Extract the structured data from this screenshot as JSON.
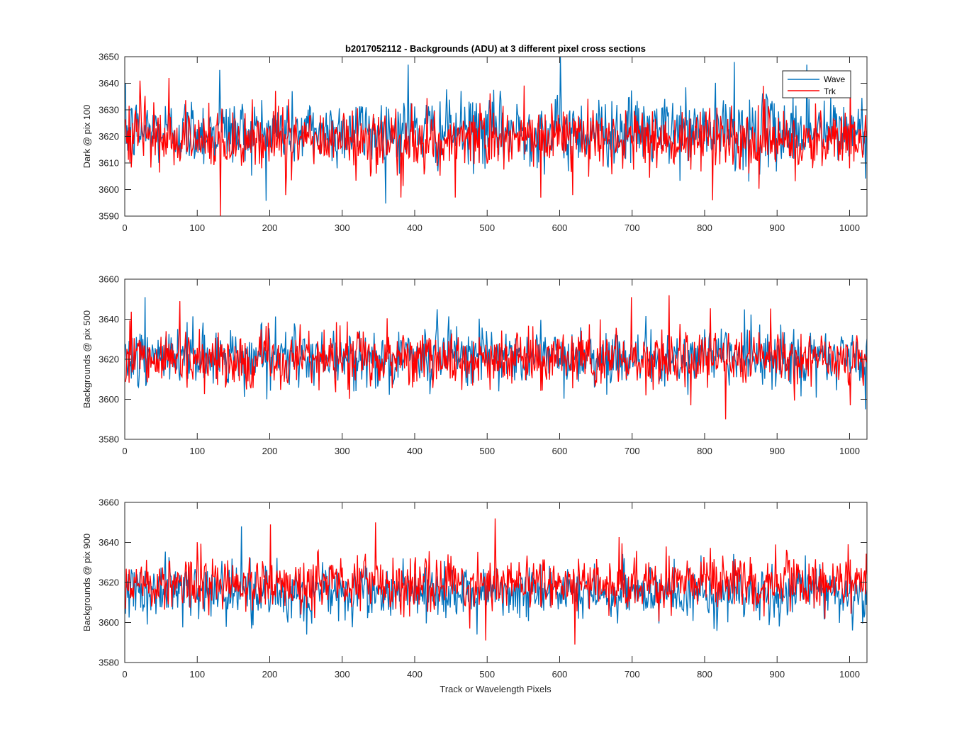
{
  "chart_data": [
    {
      "type": "line",
      "title": "b2017052112 - Backgrounds (ADU) at 3 different pixel cross sections",
      "xlabel": "",
      "ylabel": "Dark @ pix 100",
      "xlim": [
        0,
        1024
      ],
      "ylim": [
        3590,
        3650
      ],
      "xticks": [
        0,
        100,
        200,
        300,
        400,
        500,
        600,
        700,
        800,
        900,
        1000
      ],
      "yticks": [
        3590,
        3600,
        3610,
        3620,
        3630,
        3640,
        3650
      ],
      "grid": false,
      "legend": "top-right",
      "series": [
        {
          "name": "Wave",
          "color": "#0072BD",
          "n_points": 1024,
          "mean": 3622,
          "sigma": 6.5,
          "extremes": [
            [
              130,
              3645
            ],
            [
              390,
              3647
            ],
            [
              600,
              3650
            ],
            [
              840,
              3648
            ],
            [
              940,
              3647
            ],
            [
              860,
              3603
            ]
          ]
        },
        {
          "name": "Trk",
          "color": "#FF0000",
          "n_points": 1024,
          "mean": 3619,
          "sigma": 6.0,
          "extremes": [
            [
              131,
              3590
            ],
            [
              60,
              3642
            ],
            [
              20,
              3641
            ],
            [
              1000,
              3643
            ],
            [
              810,
              3596
            ],
            [
              380,
              3597
            ],
            [
              455,
              3597
            ]
          ]
        }
      ]
    },
    {
      "type": "line",
      "title": "",
      "xlabel": "",
      "ylabel": "Backgrounds @ pix 500",
      "xlim": [
        0,
        1024
      ],
      "ylim": [
        3580,
        3660
      ],
      "xticks": [
        0,
        100,
        200,
        300,
        400,
        500,
        600,
        700,
        800,
        900,
        1000
      ],
      "yticks": [
        3580,
        3600,
        3620,
        3640,
        3660
      ],
      "grid": false,
      "series": [
        {
          "name": "Wave",
          "color": "#0072BD",
          "n_points": 1024,
          "mean": 3621,
          "sigma": 7.0,
          "extremes": [
            [
              27,
              3651
            ],
            [
              1021,
              3595
            ],
            [
              195,
              3600
            ],
            [
              430,
              3645
            ]
          ]
        },
        {
          "name": "Trk",
          "color": "#FF0000",
          "n_points": 1024,
          "mean": 3620,
          "sigma": 7.0,
          "extremes": [
            [
              750,
              3652
            ],
            [
              698,
              3651
            ],
            [
              75,
              3649
            ],
            [
              828,
              3590
            ],
            [
              780,
              3597
            ],
            [
              1000,
              3597
            ]
          ]
        }
      ]
    },
    {
      "type": "line",
      "title": "",
      "xlabel": "Track or Wavelength Pixels",
      "ylabel": "Backgrounds @ pix 900",
      "xlim": [
        0,
        1024
      ],
      "ylim": [
        3580,
        3660
      ],
      "xticks": [
        0,
        100,
        200,
        300,
        400,
        500,
        600,
        700,
        800,
        900,
        1000
      ],
      "yticks": [
        3580,
        3600,
        3620,
        3640,
        3660
      ],
      "grid": false,
      "series": [
        {
          "name": "Wave",
          "color": "#0072BD",
          "n_points": 1024,
          "mean": 3615,
          "sigma": 6.5,
          "extremes": [
            [
              160,
              3648
            ],
            [
              250,
              3594
            ],
            [
              30,
              3599
            ],
            [
              485,
              3594
            ]
          ]
        },
        {
          "name": "Trk",
          "color": "#FF0000",
          "n_points": 1024,
          "mean": 3620,
          "sigma": 7.0,
          "extremes": [
            [
              510,
              3652
            ],
            [
              345,
              3650
            ],
            [
              200,
              3649
            ],
            [
              620,
              3589
            ],
            [
              497,
              3591
            ],
            [
              475,
              3597
            ]
          ]
        }
      ]
    }
  ]
}
